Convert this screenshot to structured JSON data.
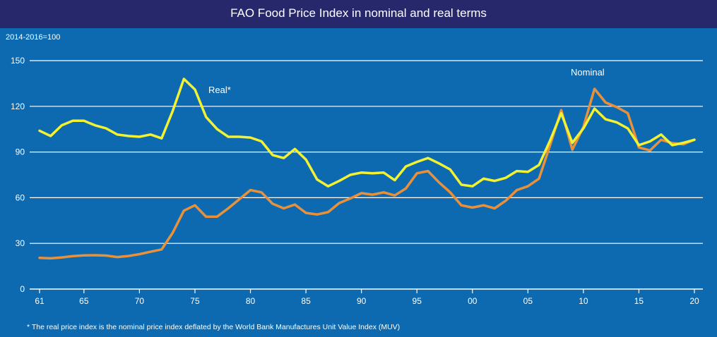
{
  "chart_data": {
    "type": "line",
    "title": "FAO Food Price Index in nominal and real terms",
    "ylabel": "2014-2016=100",
    "footnote": "* The real price index is the nominal price index deflated by the World Bank Manufactures Unit Value Index (MUV)",
    "ylim": [
      0,
      150
    ],
    "yticks": [
      0,
      30,
      60,
      90,
      120,
      150
    ],
    "xlim": [
      1961,
      2020
    ],
    "xticks": [
      {
        "value": 1961,
        "label": "61"
      },
      {
        "value": 1965,
        "label": "65"
      },
      {
        "value": 1970,
        "label": "70"
      },
      {
        "value": 1975,
        "label": "75"
      },
      {
        "value": 1980,
        "label": "80"
      },
      {
        "value": 1985,
        "label": "85"
      },
      {
        "value": 1990,
        "label": "90"
      },
      {
        "value": 1995,
        "label": "95"
      },
      {
        "value": 2000,
        "label": "00"
      },
      {
        "value": 2005,
        "label": "05"
      },
      {
        "value": 2010,
        "label": "10"
      },
      {
        "value": 2015,
        "label": "15"
      },
      {
        "value": 2020,
        "label": "20"
      }
    ],
    "grid": true,
    "x": [
      1961,
      1962,
      1963,
      1964,
      1965,
      1966,
      1967,
      1968,
      1969,
      1970,
      1971,
      1972,
      1973,
      1974,
      1975,
      1976,
      1977,
      1978,
      1979,
      1980,
      1981,
      1982,
      1983,
      1984,
      1985,
      1986,
      1987,
      1988,
      1989,
      1990,
      1991,
      1992,
      1993,
      1994,
      1995,
      1996,
      1997,
      1998,
      1999,
      2000,
      2001,
      2002,
      2003,
      2004,
      2005,
      2006,
      2007,
      2008,
      2009,
      2010,
      2011,
      2012,
      2013,
      2014,
      2015,
      2016,
      2017,
      2018,
      2019,
      2020
    ],
    "series": [
      {
        "name": "Nominal",
        "color": "#e8913a",
        "values": [
          20.5,
          20.2,
          20.8,
          21.6,
          22.1,
          22.2,
          22.0,
          21.0,
          21.7,
          22.9,
          24.5,
          26.0,
          37.0,
          51.5,
          55.0,
          47.5,
          47.6,
          53.0,
          59.0,
          65.0,
          63.5,
          56.0,
          53.0,
          55.5,
          50.0,
          49.0,
          50.5,
          56.5,
          59.5,
          63.0,
          62.0,
          63.5,
          61.5,
          66.0,
          76.0,
          77.5,
          70.0,
          63.5,
          55.0,
          53.5,
          55.0,
          53.0,
          58.0,
          65.0,
          67.5,
          72.5,
          94.5,
          117.5,
          91.5,
          106.5,
          131.5,
          122.5,
          119.5,
          115.5,
          93.0,
          91.0,
          98.0,
          95.9,
          95.1,
          98.1
        ]
      },
      {
        "name": "Real*",
        "color": "#f2f233",
        "values": [
          104.0,
          100.5,
          107.5,
          110.5,
          110.5,
          107.5,
          105.5,
          101.5,
          100.5,
          100.0,
          101.5,
          99.0,
          117.0,
          138.0,
          131.0,
          113.0,
          105.0,
          100.0,
          100.0,
          99.5,
          97.0,
          88.0,
          86.0,
          92.0,
          85.0,
          72.0,
          67.5,
          71.0,
          75.0,
          76.5,
          76.0,
          76.5,
          71.5,
          80.5,
          83.5,
          86.0,
          82.5,
          78.5,
          68.5,
          67.5,
          72.5,
          71.0,
          73.0,
          77.5,
          77.0,
          81.5,
          97.5,
          115.5,
          96.0,
          105.5,
          118.5,
          111.5,
          109.5,
          105.5,
          94.5,
          97.0,
          101.5,
          94.5,
          96.0,
          98.0
        ]
      }
    ],
    "series_labels": [
      "Real*",
      "Nominal"
    ]
  }
}
